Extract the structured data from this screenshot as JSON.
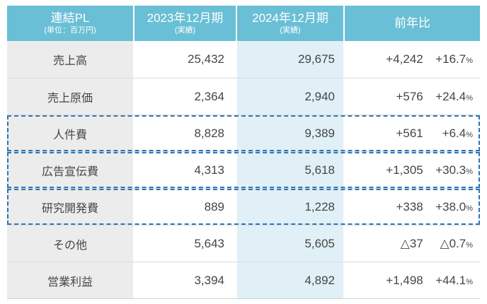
{
  "table": {
    "header": {
      "col1_title": "連結PL",
      "col1_sub": "(単位：百万円)",
      "col2_title": "2023年12月期",
      "col2_sub": "(実績)",
      "col3_title": "2024年12月期",
      "col3_sub": "(実績)",
      "col4_title": "前年比"
    },
    "percent_symbol": "%",
    "rows": [
      {
        "label": "売上高",
        "fy2023": "25,432",
        "fy2024": "29,675",
        "yoy_change": "+4,242",
        "yoy_pct": "+16.7"
      },
      {
        "label": "売上原価",
        "fy2023": "2,364",
        "fy2024": "2,940",
        "yoy_change": "+576",
        "yoy_pct": "+24.4"
      },
      {
        "label": "人件費",
        "fy2023": "8,828",
        "fy2024": "9,389",
        "yoy_change": "+561",
        "yoy_pct": "+6.4",
        "highlight": true
      },
      {
        "label": "広告宣伝費",
        "fy2023": "4,313",
        "fy2024": "5,618",
        "yoy_change": "+1,305",
        "yoy_pct": "+30.3",
        "highlight": true
      },
      {
        "label": "研究開発費",
        "fy2023": "889",
        "fy2024": "1,228",
        "yoy_change": "+338",
        "yoy_pct": "+38.0",
        "highlight": true
      },
      {
        "label": "その他",
        "fy2023": "5,643",
        "fy2024": "5,605",
        "yoy_change": "△37",
        "yoy_pct": "△0.7"
      },
      {
        "label": "営業利益",
        "fy2023": "3,394",
        "fy2024": "4,892",
        "yoy_change": "+1,498",
        "yoy_pct": "+44.1"
      }
    ],
    "colors": {
      "header_bg": "#69BFD5",
      "header_text": "#FFFFFF",
      "label_col_bg": "#ECECEC",
      "fy2024_col_bg": "#E0F0F6",
      "highlight_border": "#2E75B6",
      "body_text": "#454545",
      "row_divider": "#DCDCDC"
    }
  }
}
